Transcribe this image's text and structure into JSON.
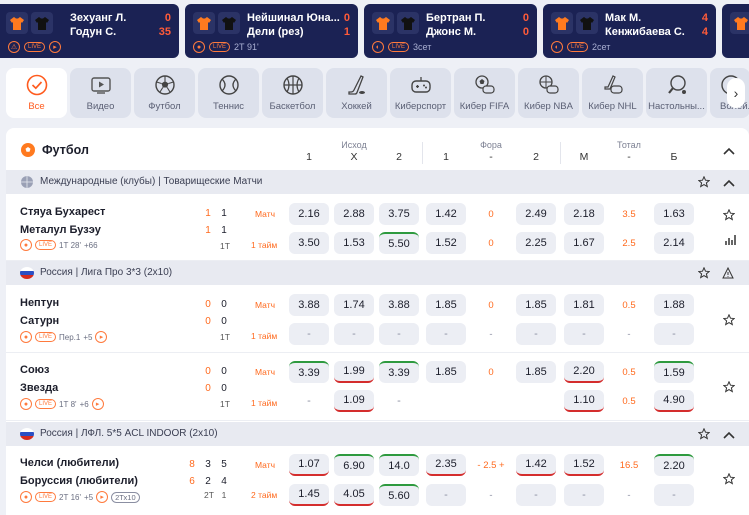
{
  "live_cards": [
    {
      "team1": "Зехуанг Л.",
      "team2": "Годун С.",
      "score1": "0",
      "score2": "35",
      "time": ""
    },
    {
      "team1": "Нейшинал Юна...",
      "team2": "Дели (рез)",
      "score1": "0",
      "score2": "1",
      "time": "2Т 91'"
    },
    {
      "team1": "Бертран П.",
      "team2": "Джонс М.",
      "score1": "0",
      "score2": "0",
      "time": "3сет"
    },
    {
      "team1": "Мак М.",
      "team2": "Кенжибаева С.",
      "score1": "4",
      "score2": "4",
      "time": "2сет"
    }
  ],
  "sport_tabs": [
    {
      "label": "Все",
      "icon": "check-circle-icon",
      "active": true
    },
    {
      "label": "Видео",
      "icon": "video-icon"
    },
    {
      "label": "Футбол",
      "icon": "soccer-ball-icon"
    },
    {
      "label": "Теннис",
      "icon": "tennis-ball-icon"
    },
    {
      "label": "Баскетбол",
      "icon": "basketball-icon"
    },
    {
      "label": "Хоккей",
      "icon": "hockey-stick-icon"
    },
    {
      "label": "Киберспорт",
      "icon": "gamepad-icon"
    },
    {
      "label": "Кибер FIFA",
      "icon": "cyber-fifa-icon"
    },
    {
      "label": "Кибер NBA",
      "icon": "cyber-nba-icon"
    },
    {
      "label": "Кибер NHL",
      "icon": "cyber-nhl-icon"
    },
    {
      "label": "Настольны...",
      "icon": "table-tennis-icon"
    },
    {
      "label": "Волей...",
      "icon": "volleyball-icon"
    }
  ],
  "section": {
    "title": "Футбол",
    "groups": {
      "outcome": "Исход",
      "handicap": "Фора",
      "total": "Тотал"
    },
    "columns": [
      "1",
      "Х",
      "2",
      "1",
      "-",
      "2",
      "М",
      "-",
      "Б"
    ]
  },
  "leagues": [
    {
      "name": "Международные (клубы) | Товарищеские Матчи",
      "flag": "world"
    },
    {
      "name": "Россия | Лига Про 3*3 (2х10)",
      "flag": "ru"
    },
    {
      "name": "Россия | ЛФЛ. 5*5 ACL INDOOR (2х10)",
      "flag": "ru"
    }
  ],
  "matches": [
    {
      "team1": "Стяуа Бухарест",
      "team2": "Металул Бузэу",
      "s1": [
        "1",
        "1"
      ],
      "s2": [
        "1",
        "1"
      ],
      "meta_time": "1Т 28'",
      "meta_more": "+66",
      "meta_period": "1Т",
      "row1_tag": "Матч",
      "row2_tag": "1 тайм",
      "row1": [
        "2.16",
        "2.88",
        "3.75",
        "1.42",
        "0",
        "2.49",
        "2.18",
        "3.5",
        "1.63"
      ],
      "row2": [
        "3.50",
        "1.53",
        "5.50",
        "1.52",
        "0",
        "2.25",
        "1.67",
        "2.5",
        "2.14"
      ]
    },
    {
      "team1": "Нептун",
      "team2": "Сатурн",
      "s1": [
        "0",
        "0"
      ],
      "s2": [
        "0",
        "0"
      ],
      "meta_time": "Пер.1",
      "meta_more": "+5",
      "meta_period": "1Т",
      "row1_tag": "Матч",
      "row2_tag": "1 тайм",
      "row1": [
        "3.88",
        "1.74",
        "3.88",
        "1.85",
        "0",
        "1.85",
        "1.81",
        "0.5",
        "1.88"
      ],
      "row2": [
        "-",
        "-",
        "-",
        "-",
        "-",
        "-",
        "-",
        "-",
        "-"
      ]
    },
    {
      "team1": "Союз",
      "team2": "Звезда",
      "s1": [
        "0",
        "0"
      ],
      "s2": [
        "0",
        "0"
      ],
      "meta_time": "1Т 8'",
      "meta_more": "+6",
      "meta_period": "1Т",
      "row1_tag": "Матч",
      "row2_tag": "1 тайм",
      "row1": [
        "3.39",
        "1.99",
        "3.39",
        "1.85",
        "0",
        "1.85",
        "2.20",
        "0.5",
        "1.59"
      ],
      "row2": [
        "-",
        "1.09",
        "-",
        "",
        "",
        "",
        "1.10",
        "0.5",
        "4.90"
      ]
    },
    {
      "team1": "Челси (любители)",
      "team2": "Боруссия (любители)",
      "s1": [
        "8",
        "3",
        "5"
      ],
      "s2": [
        "6",
        "2",
        "4"
      ],
      "meta_time": "2Т 16'",
      "meta_more": "+5",
      "meta_extra": "2Тх10",
      "meta_period": "2Т",
      "row1_tag": "Матч",
      "row2_tag": "2 тайм",
      "row1": [
        "1.07",
        "6.90",
        "14.0",
        "2.35",
        "- 2.5 +",
        "1.42",
        "1.52",
        "16.5",
        "2.20"
      ],
      "row2": [
        "1.45",
        "4.05",
        "5.60",
        "-",
        "-",
        "-",
        "-",
        "-",
        "-"
      ]
    }
  ]
}
